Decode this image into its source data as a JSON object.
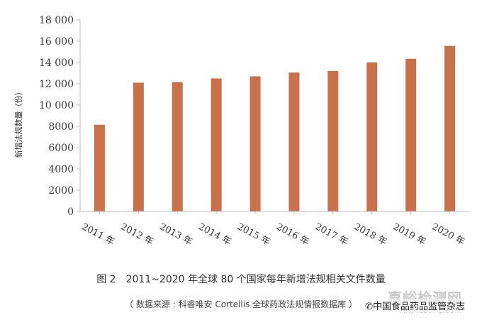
{
  "chart_data": {
    "type": "bar",
    "categories": [
      "2011 年",
      "2012 年",
      "2013 年",
      "2014 年",
      "2015 年",
      "2016 年",
      "2017 年",
      "2018 年",
      "2019 年",
      "2020 年"
    ],
    "values": [
      8150,
      12100,
      12150,
      12500,
      12700,
      13050,
      13200,
      14000,
      14350,
      15550
    ],
    "ylabel": "新增法规数量（份）",
    "xlabel": "",
    "ylim": [
      0,
      18000
    ],
    "yticks": [
      0,
      2000,
      4000,
      6000,
      8000,
      10000,
      12000,
      14000,
      16000,
      18000
    ],
    "ytick_labels": [
      "0",
      "2000",
      "4000",
      "6000",
      "8000",
      "10 000",
      "12 000",
      "14 000",
      "16 000",
      "18 000"
    ],
    "bar_color": "#c8714a",
    "grid": false,
    "legend": "none"
  },
  "caption": "图 2　2011~2020 年全球 80 个国家每年新增法规相关文件数量",
  "source": "（ 数据来源 : 科睿唯安 Cortellis 全球药政法规情报数据库 ）",
  "watermark": {
    "main": "嘉峪检测网",
    "sub": "AnyTesting.com"
  },
  "wechat_label": "中国食品药品监管杂志"
}
